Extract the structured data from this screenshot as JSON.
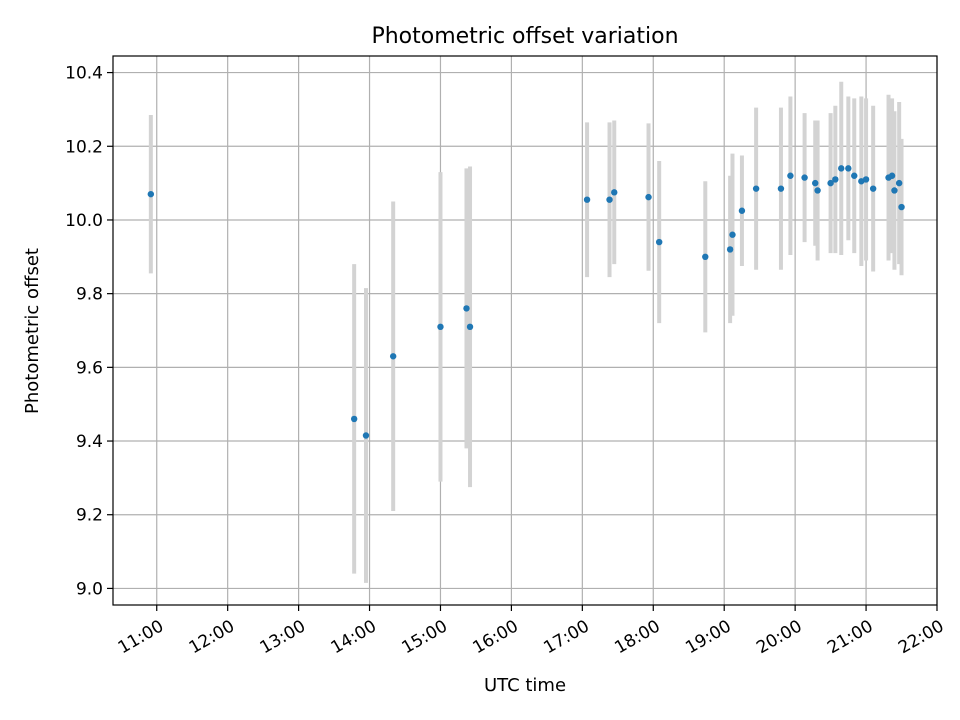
{
  "chart_data": {
    "type": "scatter",
    "title": "Photometric offset variation",
    "xlabel": "UTC time",
    "ylabel": "Photometric offset",
    "x_ticks": [
      "11:00",
      "12:00",
      "13:00",
      "14:00",
      "15:00",
      "16:00",
      "17:00",
      "18:00",
      "19:00",
      "20:00",
      "21:00",
      "22:00"
    ],
    "y_ticks": [
      "9.0",
      "9.2",
      "9.4",
      "9.6",
      "9.8",
      "10.0",
      "10.2",
      "10.4"
    ],
    "xlim": [
      "10:23",
      "22:00"
    ],
    "ylim": [
      8.955,
      10.445
    ],
    "grid": true,
    "point_color": "#1f77b4",
    "errorbar_color": "#d3d3d3",
    "points": [
      {
        "x": "10:55",
        "y": 10.07,
        "err": 0.215
      },
      {
        "x": "13:47",
        "y": 9.46,
        "err": 0.42
      },
      {
        "x": "13:57",
        "y": 9.415,
        "err": 0.4
      },
      {
        "x": "14:20",
        "y": 9.63,
        "err": 0.42
      },
      {
        "x": "15:00",
        "y": 9.71,
        "err": 0.42
      },
      {
        "x": "15:22",
        "y": 9.76,
        "err": 0.38
      },
      {
        "x": "15:25",
        "y": 9.71,
        "err": 0.435
      },
      {
        "x": "17:04",
        "y": 10.055,
        "err": 0.21
      },
      {
        "x": "17:23",
        "y": 10.055,
        "err": 0.21
      },
      {
        "x": "17:27",
        "y": 10.075,
        "err": 0.195
      },
      {
        "x": "17:56",
        "y": 10.062,
        "err": 0.2
      },
      {
        "x": "18:05",
        "y": 9.94,
        "err": 0.22
      },
      {
        "x": "18:44",
        "y": 9.9,
        "err": 0.205
      },
      {
        "x": "19:05",
        "y": 9.92,
        "err": 0.2
      },
      {
        "x": "19:07",
        "y": 9.96,
        "err": 0.22
      },
      {
        "x": "19:15",
        "y": 10.025,
        "err": 0.15
      },
      {
        "x": "19:27",
        "y": 10.085,
        "err": 0.22
      },
      {
        "x": "19:48",
        "y": 10.085,
        "err": 0.22
      },
      {
        "x": "19:56",
        "y": 10.12,
        "err": 0.215
      },
      {
        "x": "20:08",
        "y": 10.115,
        "err": 0.175
      },
      {
        "x": "20:17",
        "y": 10.1,
        "err": 0.17
      },
      {
        "x": "20:19",
        "y": 10.08,
        "err": 0.19
      },
      {
        "x": "20:30",
        "y": 10.1,
        "err": 0.19
      },
      {
        "x": "20:34",
        "y": 10.11,
        "err": 0.2
      },
      {
        "x": "20:39",
        "y": 10.14,
        "err": 0.235
      },
      {
        "x": "20:45",
        "y": 10.14,
        "err": 0.195
      },
      {
        "x": "20:50",
        "y": 10.12,
        "err": 0.21
      },
      {
        "x": "20:56",
        "y": 10.105,
        "err": 0.23
      },
      {
        "x": "21:00",
        "y": 10.11,
        "err": 0.22
      },
      {
        "x": "21:06",
        "y": 10.085,
        "err": 0.225
      },
      {
        "x": "21:19",
        "y": 10.115,
        "err": 0.225
      },
      {
        "x": "21:22",
        "y": 10.12,
        "err": 0.21
      },
      {
        "x": "21:24",
        "y": 10.08,
        "err": 0.215
      },
      {
        "x": "21:28",
        "y": 10.1,
        "err": 0.22
      },
      {
        "x": "21:30",
        "y": 10.035,
        "err": 0.185
      }
    ]
  }
}
